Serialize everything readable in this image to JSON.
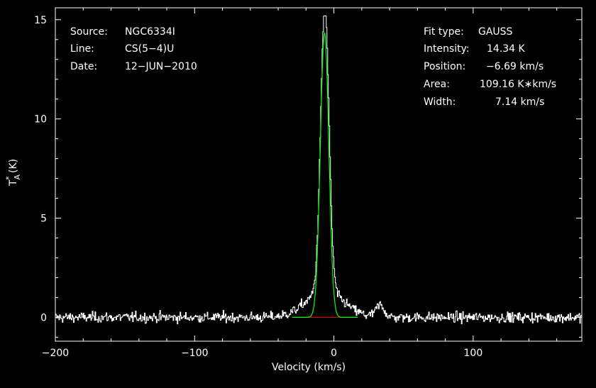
{
  "chart_data": {
    "type": "line",
    "xlabel": "Velocity (km/s)",
    "ylabel": "T*A (K)",
    "xlim": [
      -200,
      178
    ],
    "ylim": [
      -1.2,
      15.6
    ],
    "xticks": [
      -200,
      -100,
      0,
      100
    ],
    "xtick_labels": [
      "−200",
      "−100",
      "0",
      "100"
    ],
    "yticks": [
      0,
      5,
      10,
      15
    ],
    "ytick_labels": [
      "0",
      "5",
      "10",
      "15"
    ],
    "colors": {
      "background": "#000000",
      "axes": "#ffffff",
      "spectrum": "#ffffff",
      "fit": "#00ff00",
      "baseline": "#ff0000"
    },
    "series": [
      {
        "role": "spectrum",
        "peak_velocity": -6.69,
        "peak_value": 15.2,
        "noise_rms": 0.18,
        "broad_wing_amplitude": 1.3,
        "broad_wing_width": 20,
        "secondary_feature": {
          "x": 33,
          "y": 0.6
        }
      },
      {
        "role": "gaussian-fit",
        "center": -6.69,
        "amplitude": 14.34,
        "fwhm": 7.14
      },
      {
        "role": "baseline",
        "x": [
          -20,
          6
        ],
        "y": 0
      }
    ]
  },
  "header_left": {
    "source": {
      "label": "Source:",
      "value": "NGC6334I"
    },
    "line": {
      "label": "Line:",
      "value": "CS(5−4)U"
    },
    "date": {
      "label": "Date:",
      "value": "12−JUN−2010"
    }
  },
  "header_right": {
    "fit_type": {
      "label": "Fit type:",
      "value": "GAUSS"
    },
    "intensity": {
      "label": "Intensity:",
      "value": "14.34 K"
    },
    "position": {
      "label": "Position:",
      "value": "−6.69 km/s"
    },
    "area": {
      "label": "Area:",
      "value": "109.16 K∗km/s"
    },
    "width": {
      "label": "Width:",
      "value": "7.14 km/s"
    }
  }
}
